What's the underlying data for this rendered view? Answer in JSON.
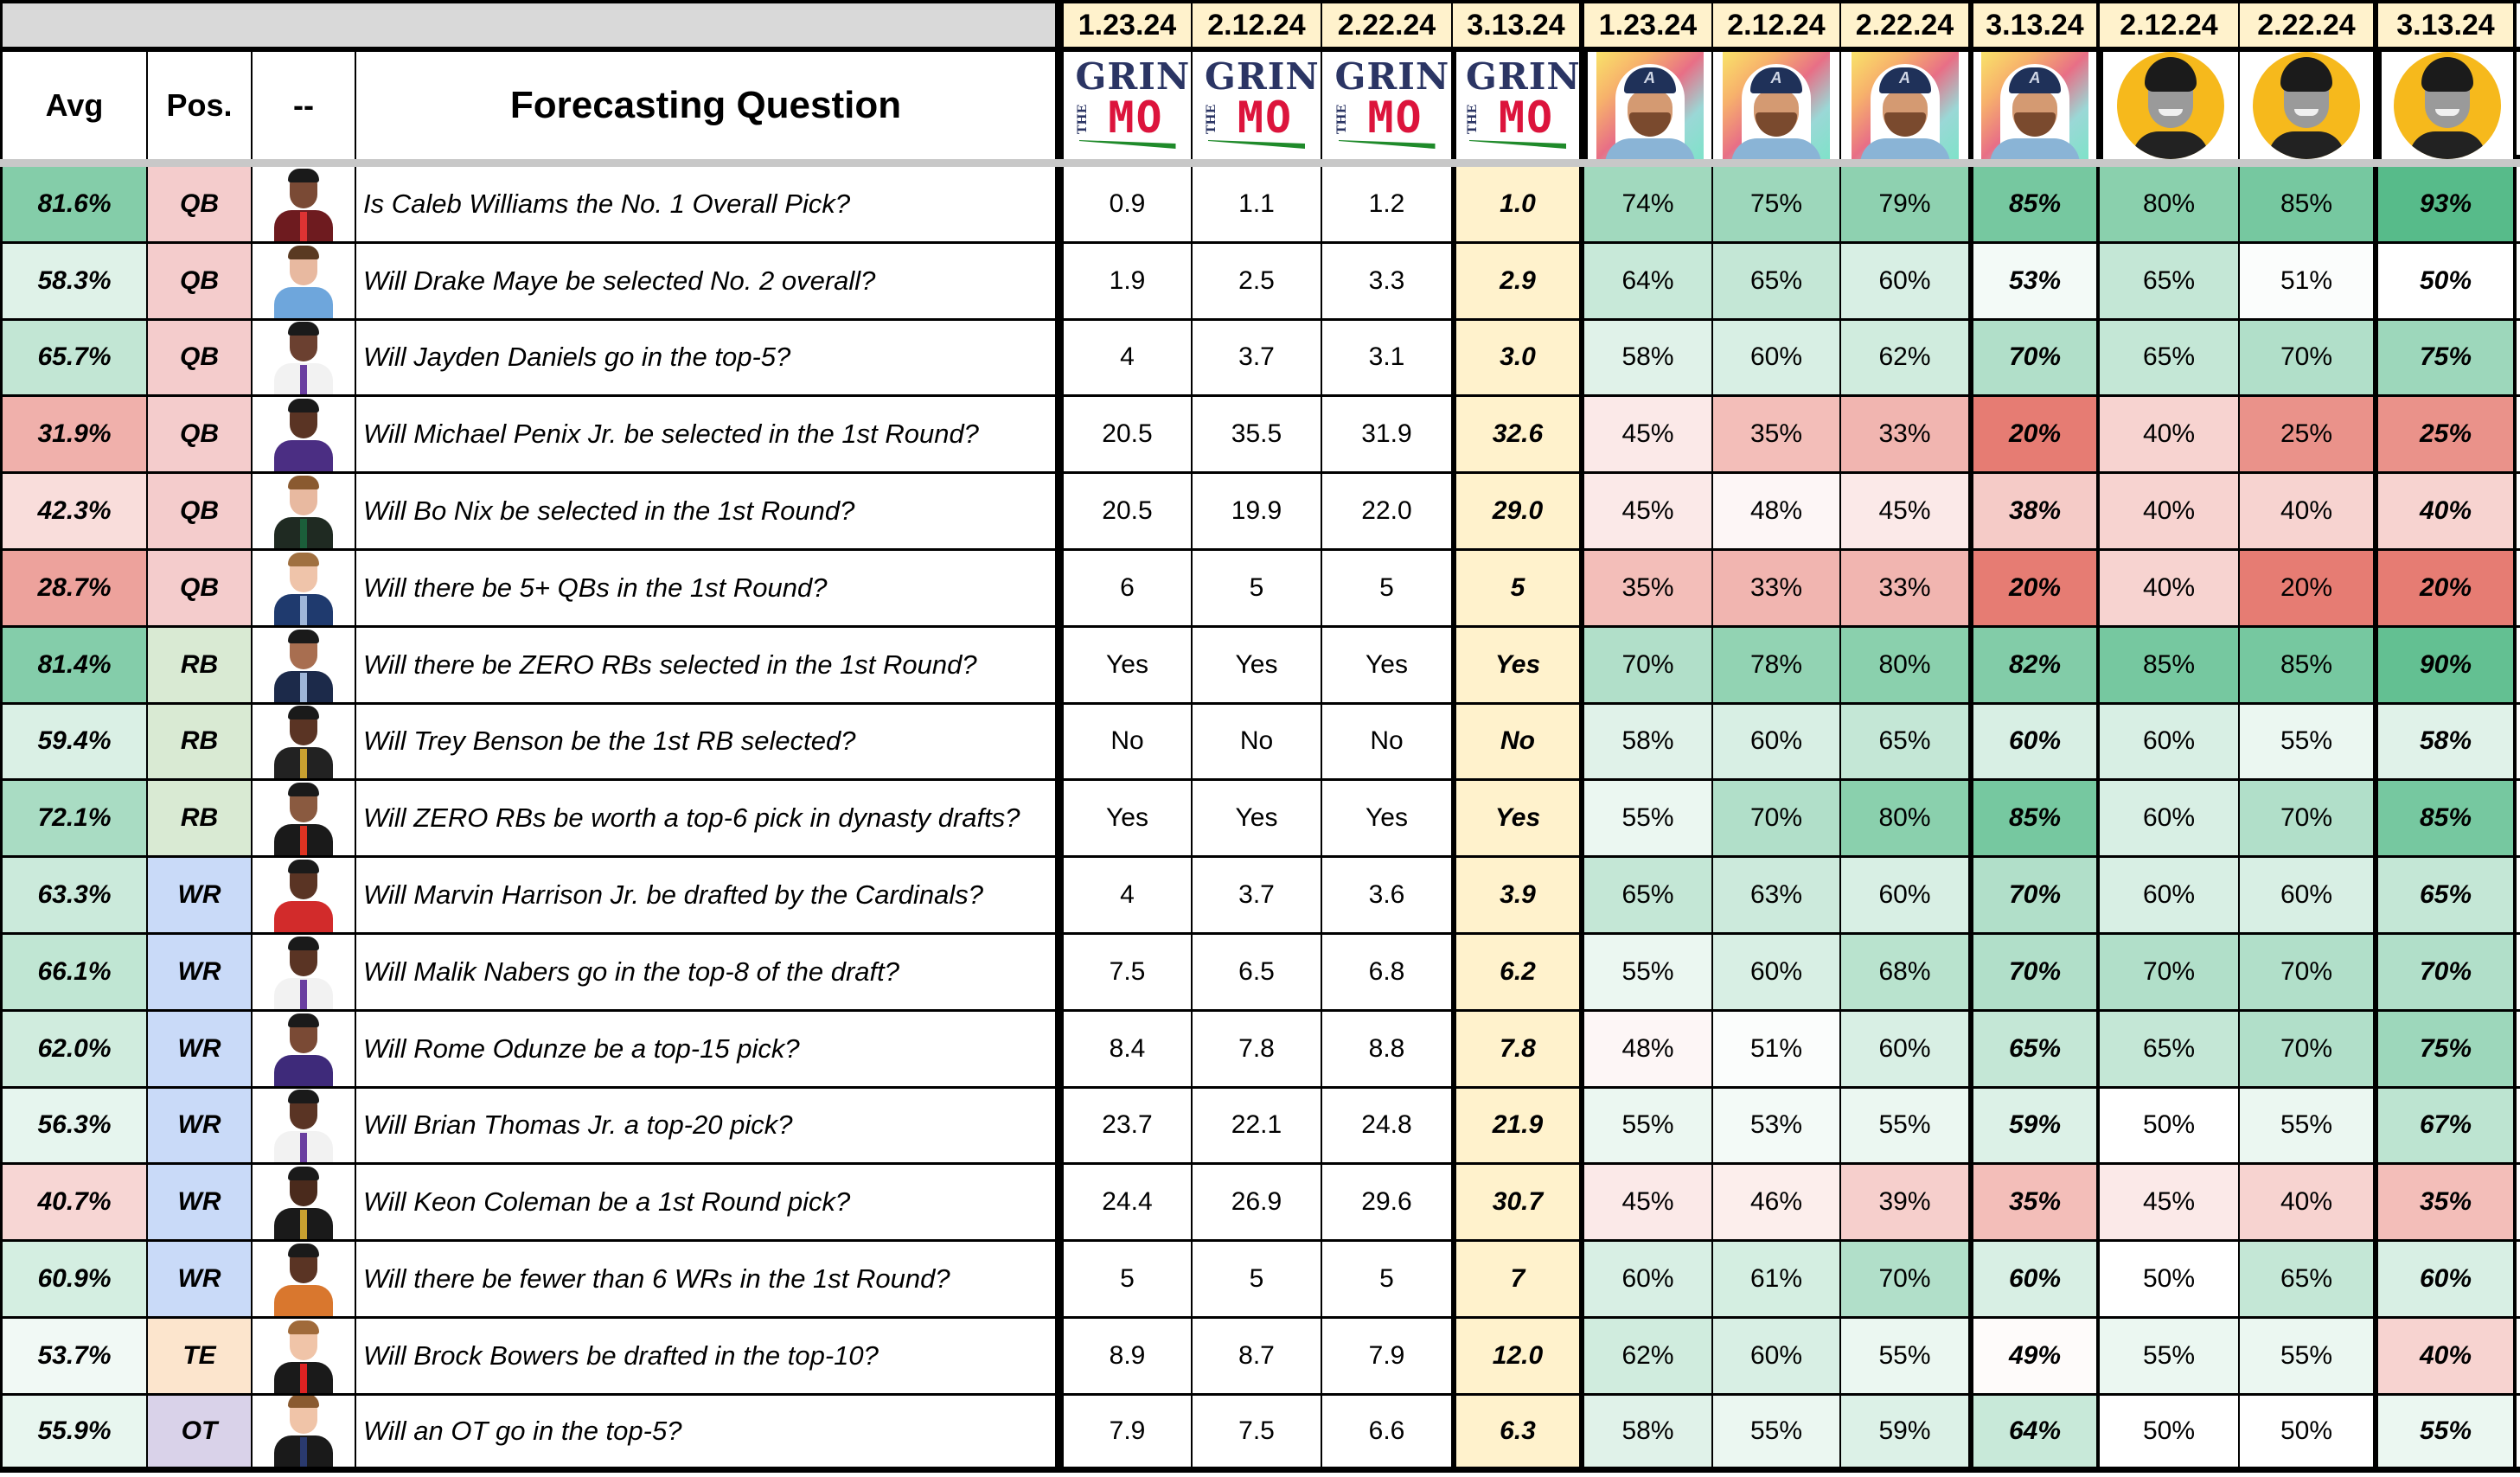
{
  "headers": {
    "avg": "Avg",
    "pos": "Pos.",
    "photo": "--",
    "question": "Forecasting Question"
  },
  "forecasters": [
    {
      "group": "grin-the-mo",
      "avatar": "grin-the-mo-logo",
      "logo_text": {
        "top": "GRIN",
        "side": "THE",
        "bottom": "MO"
      },
      "date": "1.23.24"
    },
    {
      "group": "grin-the-mo",
      "avatar": "grin-the-mo-logo",
      "logo_text": {
        "top": "GRIN",
        "side": "THE",
        "bottom": "MO"
      },
      "date": "2.12.24"
    },
    {
      "group": "grin-the-mo",
      "avatar": "grin-the-mo-logo",
      "logo_text": {
        "top": "GRIN",
        "side": "THE",
        "bottom": "MO"
      },
      "date": "2.22.24"
    },
    {
      "group": "grin-the-mo",
      "avatar": "grin-the-mo-logo",
      "logo_text": {
        "top": "GRIN",
        "side": "THE",
        "bottom": "MO"
      },
      "date": "3.13.24"
    },
    {
      "group": "forecaster-b",
      "avatar": "illustrated-avatar-braves-cap",
      "cap_letter": "A",
      "date": "1.23.24"
    },
    {
      "group": "forecaster-b",
      "avatar": "illustrated-avatar-braves-cap",
      "cap_letter": "A",
      "date": "2.12.24"
    },
    {
      "group": "forecaster-b",
      "avatar": "illustrated-avatar-braves-cap",
      "cap_letter": "A",
      "date": "2.22.24"
    },
    {
      "group": "forecaster-b",
      "avatar": "illustrated-avatar-braves-cap",
      "cap_letter": "A",
      "date": "3.13.24"
    },
    {
      "group": "forecaster-c",
      "avatar": "bw-photo-yellow-circle",
      "date": "2.12.24"
    },
    {
      "group": "forecaster-c",
      "avatar": "bw-photo-yellow-circle",
      "date": "2.22.24"
    },
    {
      "group": "forecaster-c",
      "avatar": "bw-photo-yellow-circle",
      "date": "3.13.24"
    }
  ],
  "colors": {
    "date_bg": "#fff2cc",
    "latest_grin_bg": "#fff2cc",
    "top_bar_bg": "#d9d9d9",
    "gap_bg": "#c8c8c8",
    "scale_low": "#e67c73",
    "scale_mid": "#ffffff",
    "scale_high": "#57bb8a",
    "scale_min_value": 20,
    "scale_mid_value": 50,
    "scale_max_value": 93,
    "pos": {
      "QB": "#f4cccc",
      "RB": "#d9ead3",
      "WR": "#c9daf8",
      "TE": "#fce5cd",
      "OT": "#d9d2e9"
    }
  },
  "rows": [
    {
      "avg": "81.6%",
      "avg_value": 81.6,
      "pos": "QB",
      "player": {
        "skin": "#7a4a35",
        "hair": "#1a1a1a",
        "outfit": "#6e1b1f",
        "tie": "#d33"
      },
      "question": "Is Caleb Williams the No. 1 Overall Pick?",
      "grin": [
        "0.9",
        "1.1",
        "1.2",
        "1.0"
      ],
      "b": [
        "74%",
        "75%",
        "79%",
        "85%"
      ],
      "c": [
        "80%",
        "85%",
        "93%"
      ]
    },
    {
      "avg": "58.3%",
      "avg_value": 58.3,
      "pos": "QB",
      "player": {
        "skin": "#e8b9a0",
        "hair": "#5a3a22",
        "outfit": "#6ea6dc",
        "tie": ""
      },
      "question": "Will Drake Maye be selected No. 2 overall?",
      "grin": [
        "1.9",
        "2.5",
        "3.3",
        "2.9"
      ],
      "b": [
        "64%",
        "65%",
        "60%",
        "53%"
      ],
      "c": [
        "65%",
        "51%",
        "50%"
      ]
    },
    {
      "avg": "65.7%",
      "avg_value": 65.7,
      "pos": "QB",
      "player": {
        "skin": "#6b4030",
        "hair": "#1a1a1a",
        "outfit": "#f2f2f2",
        "tie": "#6a3fa0"
      },
      "question": "Will Jayden Daniels go in the top-5?",
      "grin": [
        "4",
        "3.7",
        "3.1",
        "3.0"
      ],
      "b": [
        "58%",
        "60%",
        "62%",
        "70%"
      ],
      "c": [
        "65%",
        "70%",
        "75%"
      ]
    },
    {
      "avg": "31.9%",
      "avg_value": 31.9,
      "pos": "QB",
      "player": {
        "skin": "#5a3424",
        "hair": "#1a1a1a",
        "outfit": "#4b2e83",
        "tie": ""
      },
      "question": "Will Michael Penix Jr. be selected in the 1st Round?",
      "grin": [
        "20.5",
        "35.5",
        "31.9",
        "32.6"
      ],
      "b": [
        "45%",
        "35%",
        "33%",
        "20%"
      ],
      "c": [
        "40%",
        "25%",
        "25%"
      ]
    },
    {
      "avg": "42.3%",
      "avg_value": 42.3,
      "pos": "QB",
      "player": {
        "skin": "#e8b9a0",
        "hair": "#8a5a30",
        "outfit": "#1f2a22",
        "tie": "#1b5e3a"
      },
      "question": "Will Bo Nix be selected in the 1st Round?",
      "grin": [
        "20.5",
        "19.9",
        "22.0",
        "29.0"
      ],
      "b": [
        "45%",
        "48%",
        "45%",
        "38%"
      ],
      "c": [
        "40%",
        "40%",
        "40%"
      ]
    },
    {
      "avg": "28.7%",
      "avg_value": 28.7,
      "pos": "QB",
      "player": {
        "skin": "#efc4aa",
        "hair": "#a07040",
        "outfit": "#1f3a6e",
        "tie": "#9fb6d8"
      },
      "question": "Will there be 5+ QBs in the 1st Round?",
      "grin": [
        "6",
        "5",
        "5",
        "5"
      ],
      "b": [
        "35%",
        "33%",
        "33%",
        "20%"
      ],
      "c": [
        "40%",
        "20%",
        "20%"
      ]
    },
    {
      "avg": "81.4%",
      "avg_value": 81.4,
      "pos": "RB",
      "player": {
        "skin": "#a86e50",
        "hair": "#1a1a1a",
        "outfit": "#1c2a4a",
        "tie": "#9fb6d8"
      },
      "question": "Will there be ZERO RBs selected in the 1st Round?",
      "grin": [
        "Yes",
        "Yes",
        "Yes",
        "Yes"
      ],
      "b": [
        "70%",
        "78%",
        "80%",
        "82%"
      ],
      "c": [
        "85%",
        "85%",
        "90%"
      ]
    },
    {
      "avg": "59.4%",
      "avg_value": 59.4,
      "pos": "RB",
      "player": {
        "skin": "#5a3424",
        "hair": "#1a1a1a",
        "outfit": "#222222",
        "tie": "#c8a030"
      },
      "question": "Will Trey Benson be the 1st RB selected?",
      "grin": [
        "No",
        "No",
        "No",
        "No"
      ],
      "b": [
        "58%",
        "60%",
        "65%",
        "60%"
      ],
      "c": [
        "60%",
        "55%",
        "58%"
      ]
    },
    {
      "avg": "72.1%",
      "avg_value": 72.1,
      "pos": "RB",
      "player": {
        "skin": "#8a5a40",
        "hair": "#1a1a1a",
        "outfit": "#1a1a1a",
        "tie": "#d32"
      },
      "question": "Will ZERO RBs be worth a top-6 pick in dynasty drafts?",
      "grin": [
        "Yes",
        "Yes",
        "Yes",
        "Yes"
      ],
      "b": [
        "55%",
        "70%",
        "80%",
        "85%"
      ],
      "c": [
        "60%",
        "70%",
        "85%"
      ]
    },
    {
      "avg": "63.3%",
      "avg_value": 63.3,
      "pos": "WR",
      "player": {
        "skin": "#5a3424",
        "hair": "#1a1a1a",
        "outfit": "#d22b2b",
        "tie": ""
      },
      "question": "Will Marvin Harrison Jr. be drafted by the Cardinals?",
      "grin": [
        "4",
        "3.7",
        "3.6",
        "3.9"
      ],
      "b": [
        "65%",
        "63%",
        "60%",
        "70%"
      ],
      "c": [
        "60%",
        "60%",
        "65%"
      ]
    },
    {
      "avg": "66.1%",
      "avg_value": 66.1,
      "pos": "WR",
      "player": {
        "skin": "#5a3424",
        "hair": "#1a1a1a",
        "outfit": "#f2f2f2",
        "tie": "#6a3fa0"
      },
      "question": "Will Malik Nabers go in the top-8 of the draft?",
      "grin": [
        "7.5",
        "6.5",
        "6.8",
        "6.2"
      ],
      "b": [
        "55%",
        "60%",
        "68%",
        "70%"
      ],
      "c": [
        "70%",
        "70%",
        "70%"
      ]
    },
    {
      "avg": "62.0%",
      "avg_value": 62.0,
      "pos": "WR",
      "player": {
        "skin": "#7a4a35",
        "hair": "#1a1a1a",
        "outfit": "#3e2a7a",
        "tie": ""
      },
      "question": "Will Rome Odunze be a top-15 pick?",
      "grin": [
        "8.4",
        "7.8",
        "8.8",
        "7.8"
      ],
      "b": [
        "48%",
        "51%",
        "60%",
        "65%"
      ],
      "c": [
        "65%",
        "70%",
        "75%"
      ]
    },
    {
      "avg": "56.3%",
      "avg_value": 56.3,
      "pos": "WR",
      "player": {
        "skin": "#5a3424",
        "hair": "#1a1a1a",
        "outfit": "#f2f2f2",
        "tie": "#6a3fa0"
      },
      "question": "Will Brian Thomas Jr. a top-20 pick?",
      "grin": [
        "23.7",
        "22.1",
        "24.8",
        "21.9"
      ],
      "b": [
        "55%",
        "53%",
        "55%",
        "59%"
      ],
      "c": [
        "50%",
        "55%",
        "67%"
      ]
    },
    {
      "avg": "40.7%",
      "avg_value": 40.7,
      "pos": "WR",
      "player": {
        "skin": "#4a2a1c",
        "hair": "#1a1a1a",
        "outfit": "#1a1a1a",
        "tie": "#c8a030"
      },
      "question": "Will Keon Coleman be a 1st Round pick?",
      "grin": [
        "24.4",
        "26.9",
        "29.6",
        "30.7"
      ],
      "b": [
        "45%",
        "46%",
        "39%",
        "35%"
      ],
      "c": [
        "45%",
        "40%",
        "35%"
      ]
    },
    {
      "avg": "60.9%",
      "avg_value": 60.9,
      "pos": "WR",
      "player": {
        "skin": "#5a3424",
        "hair": "#1a1a1a",
        "outfit": "#d9772e",
        "tie": ""
      },
      "question": "Will there be fewer than 6 WRs in the 1st Round?",
      "grin": [
        "5",
        "5",
        "5",
        "7"
      ],
      "b": [
        "60%",
        "61%",
        "70%",
        "60%"
      ],
      "c": [
        "50%",
        "65%",
        "60%"
      ]
    },
    {
      "avg": "53.7%",
      "avg_value": 53.7,
      "pos": "TE",
      "player": {
        "skin": "#f0c4a8",
        "hair": "#a06a3a",
        "outfit": "#1a1a1a",
        "tie": "#d22"
      },
      "question": "Will Brock Bowers be drafted in the top-10?",
      "grin": [
        "8.9",
        "8.7",
        "7.9",
        "12.0"
      ],
      "b": [
        "62%",
        "60%",
        "55%",
        "49%"
      ],
      "c": [
        "55%",
        "55%",
        "40%"
      ]
    },
    {
      "avg": "55.9%",
      "avg_value": 55.9,
      "pos": "OT",
      "player": {
        "skin": "#f0c4a8",
        "hair": "#8a5a30",
        "outfit": "#1a1a1a",
        "tie": "#2a3a6e"
      },
      "question": "Will an OT go in the top-5?",
      "grin": [
        "7.9",
        "7.5",
        "6.6",
        "6.3"
      ],
      "b": [
        "58%",
        "55%",
        "59%",
        "64%"
      ],
      "c": [
        "50%",
        "50%",
        "55%"
      ]
    }
  ]
}
